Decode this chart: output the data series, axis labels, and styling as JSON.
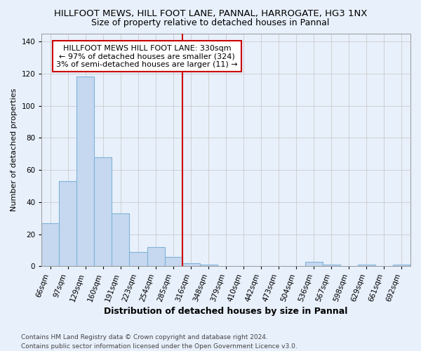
{
  "title": "HILLFOOT MEWS, HILL FOOT LANE, PANNAL, HARROGATE, HG3 1NX",
  "subtitle": "Size of property relative to detached houses in Pannal",
  "xlabel": "Distribution of detached houses by size in Pannal",
  "ylabel": "Number of detached properties",
  "categories": [
    "66sqm",
    "97sqm",
    "129sqm",
    "160sqm",
    "191sqm",
    "223sqm",
    "254sqm",
    "285sqm",
    "316sqm",
    "348sqm",
    "379sqm",
    "410sqm",
    "442sqm",
    "473sqm",
    "504sqm",
    "536sqm",
    "567sqm",
    "598sqm",
    "629sqm",
    "661sqm",
    "692sqm"
  ],
  "values": [
    27,
    53,
    118,
    68,
    33,
    9,
    12,
    6,
    2,
    1,
    0,
    0,
    0,
    0,
    0,
    3,
    1,
    0,
    1,
    0,
    1
  ],
  "bar_color": "#c5d8f0",
  "bar_edge_color": "#7fb3d8",
  "vline_index": 8,
  "vline_color": "#cc0000",
  "annotation_text_line1": "HILLFOOT MEWS HILL FOOT LANE: 330sqm",
  "annotation_text_line2": "← 97% of detached houses are smaller (324)",
  "annotation_text_line3": "3% of semi-detached houses are larger (11) →",
  "annotation_box_color": "#cc0000",
  "annotation_box_bg": "#ffffff",
  "ylim": [
    0,
    145
  ],
  "yticks": [
    0,
    20,
    40,
    60,
    80,
    100,
    120,
    140
  ],
  "grid_color": "#cccccc",
  "bg_color": "#e8f0fb",
  "footer": "Contains HM Land Registry data © Crown copyright and database right 2024.\nContains public sector information licensed under the Open Government Licence v3.0.",
  "title_fontsize": 9.5,
  "subtitle_fontsize": 9,
  "xlabel_fontsize": 9,
  "ylabel_fontsize": 8,
  "tick_fontsize": 7.5,
  "annotation_fontsize": 8,
  "footer_fontsize": 6.5
}
